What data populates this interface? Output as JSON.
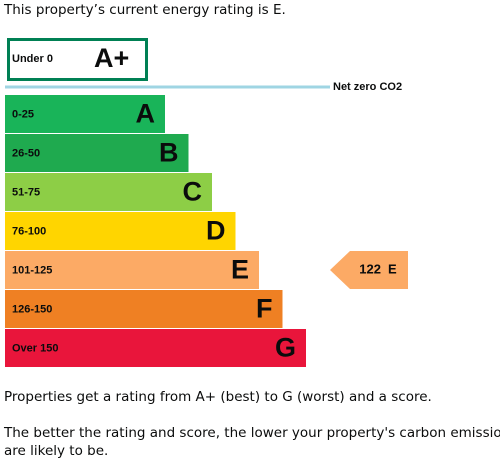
{
  "intro": "This property’s current energy rating is E.",
  "top_band": {
    "range": "Under 0",
    "letter": "A+",
    "color": "#008054"
  },
  "net_zero_label": "Net zero CO2",
  "bands": [
    {
      "range": "0-25",
      "letter": "A",
      "color": "#19b459"
    },
    {
      "range": "26-50",
      "letter": "B",
      "color": "#1faa4f"
    },
    {
      "range": "51-75",
      "letter": "C",
      "color": "#8dce46"
    },
    {
      "range": "76-100",
      "letter": "D",
      "color": "#ffd500"
    },
    {
      "range": "101-125",
      "letter": "E",
      "color": "#fcaa65"
    },
    {
      "range": "126-150",
      "letter": "F",
      "color": "#ef8023"
    },
    {
      "range": "Over 150",
      "letter": "G",
      "color": "#e9153b"
    }
  ],
  "current": {
    "score": 122,
    "letter": "E"
  },
  "paragraphs": [
    "Properties get a rating from A+ (best) to G (worst) and a score.",
    "The better the rating and score, the lower your property's carbon emissions",
    "are likely to be."
  ]
}
